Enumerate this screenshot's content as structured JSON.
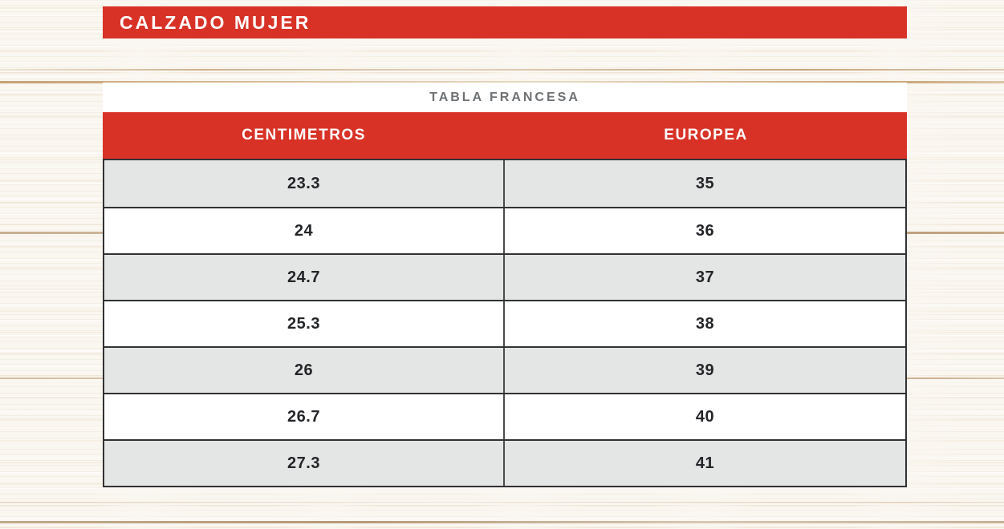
{
  "chart_data": {
    "type": "table",
    "title": "CALZADO MUJER",
    "subtitle": "TABLA FRANCESA",
    "columns": [
      "CENTIMETROS",
      "EUROPEA"
    ],
    "rows": [
      [
        "23.3",
        "35"
      ],
      [
        "24",
        "36"
      ],
      [
        "24.7",
        "37"
      ],
      [
        "25.3",
        "38"
      ],
      [
        "26",
        "39"
      ],
      [
        "26.7",
        "40"
      ],
      [
        "27.3",
        "41"
      ]
    ]
  },
  "colors": {
    "accent_red": "#d83227",
    "row_alt_gray": "#e4e6e5",
    "subtitle_gray": "#6e7174",
    "text_dark": "#242528",
    "border_dark": "#323234",
    "wood_base": "#faf7f1"
  }
}
